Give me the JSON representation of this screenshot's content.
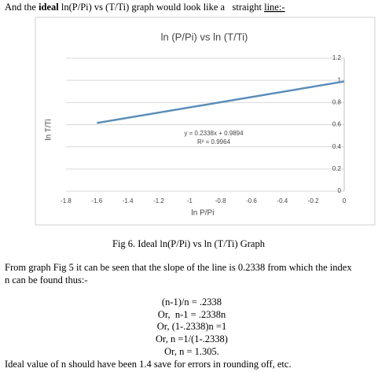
{
  "intro": {
    "before": "And the ",
    "bold": "ideal",
    "middle": " ln(P/Pi) vs (T/Ti) graph would look like a   straight ",
    "underlined": "line:-"
  },
  "chart_data": {
    "type": "line",
    "title": "ln (P/Pi) vs ln (T/Ti)",
    "x_label": "ln P/Pi",
    "y_label": "ln T/Ti",
    "x": [
      -1.6,
      0
    ],
    "series": [
      {
        "name": "ln T/Ti",
        "color": "#5b8db8",
        "values": [
          0.615,
          0.99
        ]
      }
    ],
    "xlim": [
      -1.8,
      0
    ],
    "xticks": [
      -1.8,
      -1.6,
      -1.4,
      -1.2,
      -1,
      -0.8,
      -0.6,
      -0.4,
      -0.2,
      0
    ],
    "ylim": [
      0,
      1.2
    ],
    "yticks": [
      0,
      0.2,
      0.4,
      0.6,
      0.8,
      1,
      1.2
    ],
    "grid": true,
    "annotations": [
      "y = 0.2338x + 0.9894",
      "R² = 0.9964"
    ]
  },
  "caption": "Fig 6. Ideal ln(P/Pi) vs ln (T/Ti) Graph",
  "paragraph": [
    "From graph Fig 5 it can be seen that the slope of the line is 0.2338 from which the index",
    "n can be found thus:-"
  ],
  "derivation": [
    "(n-1)/n = .2338",
    "Or,  n-1 = .2338n",
    "Or, (1-.2338)n =1",
    "Or, n =1/(1-.2338)",
    "Or, n = 1.305."
  ],
  "conclusion": "Ideal value of n should have been 1.4 save for errors in rounding off, etc."
}
